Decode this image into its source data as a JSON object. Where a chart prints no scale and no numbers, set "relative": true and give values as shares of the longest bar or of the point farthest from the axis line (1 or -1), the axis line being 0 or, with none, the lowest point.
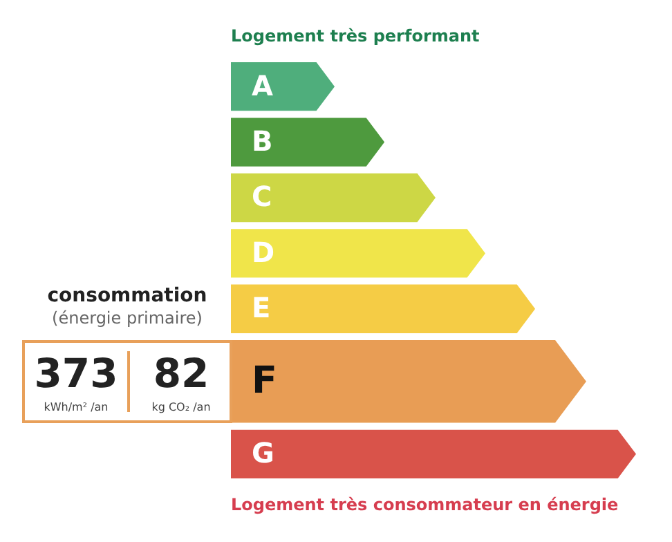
{
  "chart_data": {
    "type": "bar",
    "orientation": "horizontal",
    "relative": true,
    "title": "Logement très performant",
    "categories": [
      "A",
      "B",
      "C",
      "D",
      "E",
      "F",
      "G"
    ],
    "values": [
      0.256,
      0.379,
      0.505,
      0.628,
      0.751,
      0.877,
      1
    ],
    "colors": [
      "#4fae7c",
      "#4e9a3e",
      "#cdd745",
      "#f0e54a",
      "#f5cc45",
      "#e89d55",
      "#d9534a"
    ],
    "annotations": [
      "consommation",
      "(énergie primaire)",
      "373",
      "kWh/m² /an",
      "82",
      "kg CO₂ /an",
      "Logement très consommateur en énergie"
    ],
    "legend": false
  }
}
